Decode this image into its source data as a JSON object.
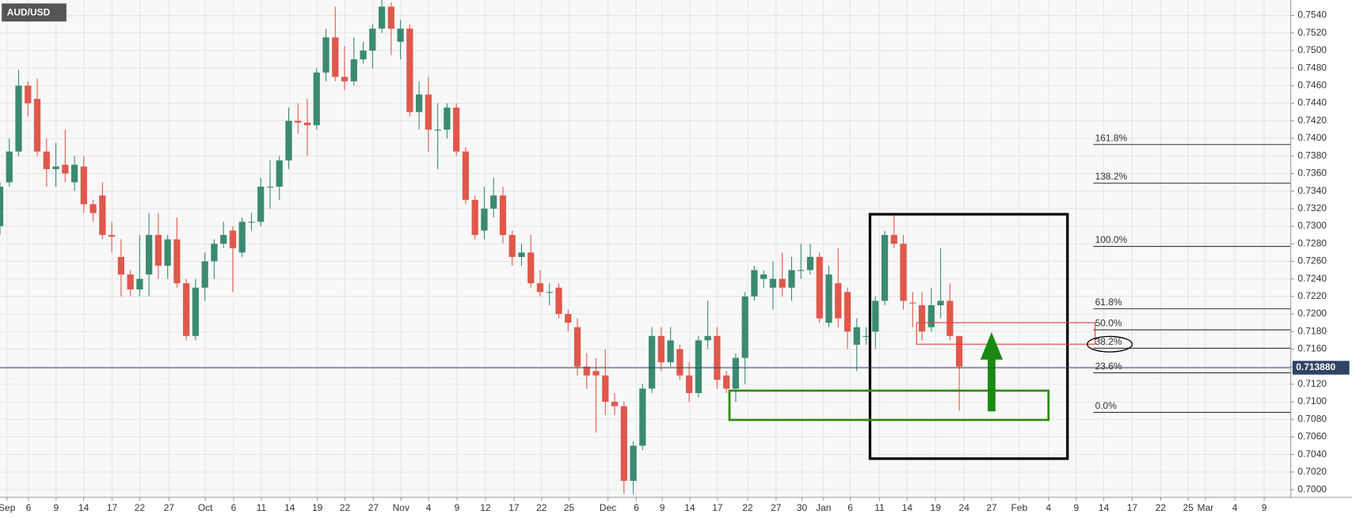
{
  "chart_data": {
    "type": "candlestick",
    "title": "AUD/USD",
    "up_color": "#3b8a72",
    "down_color": "#e0584c",
    "grid": true,
    "ylim": [
      0.69912,
      0.75576
    ],
    "yticks": [
      {
        "value": 0.7,
        "label": "0.7000"
      },
      {
        "value": 0.702,
        "label": "0.7020"
      },
      {
        "value": 0.704,
        "label": "0.7040"
      },
      {
        "value": 0.706,
        "label": "0.7060"
      },
      {
        "value": 0.708,
        "label": "0.7080"
      },
      {
        "value": 0.71,
        "label": "0.7100"
      },
      {
        "value": 0.712,
        "label": "0.7120"
      },
      {
        "value": 0.714,
        "label": "0.7140"
      },
      {
        "value": 0.716,
        "label": "0.7160"
      },
      {
        "value": 0.718,
        "label": "0.7180"
      },
      {
        "value": 0.72,
        "label": "0.7200"
      },
      {
        "value": 0.722,
        "label": "0.7220"
      },
      {
        "value": 0.724,
        "label": "0.7240"
      },
      {
        "value": 0.726,
        "label": "0.7260"
      },
      {
        "value": 0.728,
        "label": "0.7280"
      },
      {
        "value": 0.73,
        "label": "0.7300"
      },
      {
        "value": 0.732,
        "label": "0.7320"
      },
      {
        "value": 0.734,
        "label": "0.7340"
      },
      {
        "value": 0.736,
        "label": "0.7360"
      },
      {
        "value": 0.738,
        "label": "0.7380"
      },
      {
        "value": 0.74,
        "label": "0.7400"
      },
      {
        "value": 0.742,
        "label": "0.7420"
      },
      {
        "value": 0.744,
        "label": "0.7440"
      },
      {
        "value": 0.746,
        "label": "0.7460"
      },
      {
        "value": 0.748,
        "label": "0.7480"
      },
      {
        "value": 0.75,
        "label": "0.7500"
      },
      {
        "value": 0.752,
        "label": "0.7520"
      },
      {
        "value": 0.754,
        "label": "0.7540"
      }
    ],
    "xlim": [
      0,
      138.6
    ],
    "xticks": [
      {
        "value": 0.74,
        "label": "Sep"
      },
      {
        "value": 3.06,
        "label": "6"
      },
      {
        "value": 6.02,
        "label": "9"
      },
      {
        "value": 8.98,
        "label": "14"
      },
      {
        "value": 12.04,
        "label": "17"
      },
      {
        "value": 15,
        "label": "22"
      },
      {
        "value": 18.15,
        "label": "27"
      },
      {
        "value": 22.04,
        "label": "Oct"
      },
      {
        "value": 25.09,
        "label": "6"
      },
      {
        "value": 28.06,
        "label": "11"
      },
      {
        "value": 31.11,
        "label": "14"
      },
      {
        "value": 34.07,
        "label": "19"
      },
      {
        "value": 37.04,
        "label": "22"
      },
      {
        "value": 40.09,
        "label": "27"
      },
      {
        "value": 43.06,
        "label": "Nov"
      },
      {
        "value": 46.02,
        "label": "4"
      },
      {
        "value": 49.07,
        "label": "9"
      },
      {
        "value": 52.13,
        "label": "12"
      },
      {
        "value": 55.19,
        "label": "17"
      },
      {
        "value": 58.15,
        "label": "22"
      },
      {
        "value": 61.11,
        "label": "25"
      },
      {
        "value": 65.28,
        "label": "Dec"
      },
      {
        "value": 68.33,
        "label": "6"
      },
      {
        "value": 71.11,
        "label": "9"
      },
      {
        "value": 74.07,
        "label": "14"
      },
      {
        "value": 77.04,
        "label": "17"
      },
      {
        "value": 80.28,
        "label": "22"
      },
      {
        "value": 83.33,
        "label": "27"
      },
      {
        "value": 86.11,
        "label": "30"
      },
      {
        "value": 88.43,
        "label": "Jan"
      },
      {
        "value": 91.3,
        "label": "6"
      },
      {
        "value": 94.44,
        "label": "11"
      },
      {
        "value": 97.41,
        "label": "14"
      },
      {
        "value": 100.46,
        "label": "19"
      },
      {
        "value": 103.52,
        "label": "24"
      },
      {
        "value": 106.48,
        "label": "27"
      },
      {
        "value": 109.44,
        "label": "Feb"
      },
      {
        "value": 112.59,
        "label": "4"
      },
      {
        "value": 115.56,
        "label": "9"
      },
      {
        "value": 118.52,
        "label": "14"
      },
      {
        "value": 121.57,
        "label": "17"
      },
      {
        "value": 124.63,
        "label": "22"
      },
      {
        "value": 127.59,
        "label": "25"
      },
      {
        "value": 129.44,
        "label": "Mar"
      },
      {
        "value": 132.59,
        "label": "4"
      },
      {
        "value": 135.74,
        "label": "9"
      }
    ],
    "open": [
      0.73,
      0.735,
      0.7385,
      0.746,
      0.7445,
      0.7385,
      0.7365,
      0.737,
      0.735,
      0.7368,
      0.7325,
      0.7335,
      0.729,
      0.7265,
      0.7245,
      0.7228,
      0.7245,
      0.729,
      0.7255,
      0.7285,
      0.7235,
      0.7175,
      0.723,
      0.726,
      0.728,
      0.7295,
      0.727,
      0.7305,
      0.7305,
      0.7345,
      0.7345,
      0.7375,
      0.742,
      0.7418,
      0.7415,
      0.7475,
      0.7515,
      0.747,
      0.7465,
      0.749,
      0.75,
      0.7525,
      0.755,
      0.751,
      0.7525,
      0.743,
      0.745,
      0.741,
      0.741,
      0.7435,
      0.7385,
      0.733,
      0.7295,
      0.732,
      0.7335,
      0.729,
      0.7265,
      0.727,
      0.7235,
      0.7225,
      0.723,
      0.72,
      0.7185,
      0.714,
      0.7135,
      0.713,
      0.71,
      0.7095,
      0.701,
      0.705,
      0.7115,
      0.7175,
      0.7145,
      0.716,
      0.713,
      0.711,
      0.717,
      0.7175,
      0.713,
      0.7115,
      0.715,
      0.722,
      0.724,
      0.723,
      0.724,
      0.723,
      0.725,
      0.725,
      0.7265,
      0.719,
      0.7235,
      0.7225,
      0.7165,
      0.7175,
      0.718,
      0.7215,
      0.729,
      0.728,
      0.7213,
      0.721,
      0.7185,
      0.721,
      0.7215,
      0.7175
    ],
    "high": [
      0.735,
      0.74,
      0.7478,
      0.7465,
      0.7468,
      0.74,
      0.7395,
      0.741,
      0.738,
      0.738,
      0.733,
      0.735,
      0.7305,
      0.7285,
      0.725,
      0.729,
      0.7315,
      0.7315,
      0.729,
      0.731,
      0.724,
      0.724,
      0.727,
      0.7285,
      0.7305,
      0.73,
      0.731,
      0.7315,
      0.7355,
      0.7375,
      0.738,
      0.7435,
      0.744,
      0.7445,
      0.748,
      0.7525,
      0.755,
      0.7505,
      0.7515,
      0.751,
      0.753,
      0.756,
      0.7555,
      0.7535,
      0.753,
      0.7465,
      0.747,
      0.744,
      0.744,
      0.744,
      0.739,
      0.7335,
      0.7345,
      0.7355,
      0.7345,
      0.7295,
      0.728,
      0.729,
      0.725,
      0.7235,
      0.7235,
      0.7205,
      0.7195,
      0.7155,
      0.715,
      0.716,
      0.711,
      0.71,
      0.7055,
      0.712,
      0.7185,
      0.7185,
      0.7185,
      0.7165,
      0.7145,
      0.7175,
      0.7215,
      0.7185,
      0.7135,
      0.7155,
      0.7225,
      0.7255,
      0.725,
      0.726,
      0.727,
      0.7265,
      0.728,
      0.728,
      0.727,
      0.7255,
      0.7275,
      0.723,
      0.7195,
      0.7185,
      0.722,
      0.7295,
      0.7315,
      0.729,
      0.7225,
      0.7225,
      0.723,
      0.7275,
      0.7235,
      0.7175
    ],
    "low": [
      0.729,
      0.7345,
      0.738,
      0.7425,
      0.738,
      0.7345,
      0.7345,
      0.735,
      0.734,
      0.7315,
      0.7305,
      0.7285,
      0.727,
      0.722,
      0.722,
      0.722,
      0.722,
      0.724,
      0.724,
      0.723,
      0.717,
      0.717,
      0.7215,
      0.724,
      0.7275,
      0.7225,
      0.7265,
      0.7295,
      0.73,
      0.732,
      0.733,
      0.7365,
      0.7405,
      0.738,
      0.741,
      0.7465,
      0.7465,
      0.7455,
      0.746,
      0.7485,
      0.748,
      0.752,
      0.7495,
      0.749,
      0.7425,
      0.741,
      0.7385,
      0.7365,
      0.74,
      0.738,
      0.7325,
      0.7285,
      0.7285,
      0.731,
      0.728,
      0.7255,
      0.7255,
      0.723,
      0.722,
      0.721,
      0.7195,
      0.718,
      0.713,
      0.7115,
      0.7065,
      0.7085,
      0.7085,
      0.6995,
      0.6995,
      0.7045,
      0.711,
      0.7135,
      0.714,
      0.7125,
      0.71,
      0.7105,
      0.716,
      0.7115,
      0.711,
      0.71,
      0.712,
      0.7215,
      0.723,
      0.7205,
      0.722,
      0.7215,
      0.724,
      0.7245,
      0.719,
      0.7185,
      0.7185,
      0.716,
      0.7135,
      0.7165,
      0.716,
      0.721,
      0.7275,
      0.7205,
      0.7185,
      0.717,
      0.718,
      0.7195,
      0.717,
      0.709
    ],
    "close": [
      0.7345,
      0.7385,
      0.746,
      0.744,
      0.7385,
      0.7365,
      0.7368,
      0.736,
      0.737,
      0.7325,
      0.7315,
      0.729,
      0.7288,
      0.7245,
      0.7228,
      0.724,
      0.729,
      0.7255,
      0.7285,
      0.7235,
      0.7175,
      0.723,
      0.726,
      0.728,
      0.729,
      0.7275,
      0.7305,
      0.7305,
      0.7345,
      0.7345,
      0.7375,
      0.742,
      0.7418,
      0.7415,
      0.7475,
      0.7515,
      0.747,
      0.7465,
      0.749,
      0.75,
      0.7525,
      0.755,
      0.7525,
      0.7525,
      0.743,
      0.745,
      0.741,
      0.741,
      0.7435,
      0.7385,
      0.733,
      0.729,
      0.732,
      0.7335,
      0.729,
      0.7265,
      0.727,
      0.7235,
      0.7225,
      0.7225,
      0.72,
      0.719,
      0.714,
      0.713,
      0.713,
      0.71,
      0.7095,
      0.701,
      0.705,
      0.7115,
      0.7175,
      0.7145,
      0.717,
      0.713,
      0.711,
      0.717,
      0.7175,
      0.7125,
      0.7115,
      0.715,
      0.722,
      0.725,
      0.7245,
      0.724,
      0.723,
      0.725,
      0.725,
      0.7265,
      0.7195,
      0.7245,
      0.7195,
      0.718,
      0.7185,
      0.7175,
      0.7215,
      0.729,
      0.728,
      0.7215,
      0.7212,
      0.718,
      0.721,
      0.7215,
      0.7175,
      0.714
    ],
    "fib_levels": [
      {
        "label": "161.8%",
        "value": 0.7393
      },
      {
        "label": "138.2%",
        "value": 0.7349
      },
      {
        "label": "100.0%",
        "value": 0.7277
      },
      {
        "label": "61.8%",
        "value": 0.7206
      },
      {
        "label": "50.0%",
        "value": 0.7182
      },
      {
        "label": "38.2%",
        "value": 0.7161
      },
      {
        "label": "23.6%",
        "value": 0.7133
      },
      {
        "label": "0.0%",
        "value": 0.7088
      }
    ],
    "last_price": {
      "value": 0.71388,
      "label": "0.713880"
    }
  }
}
